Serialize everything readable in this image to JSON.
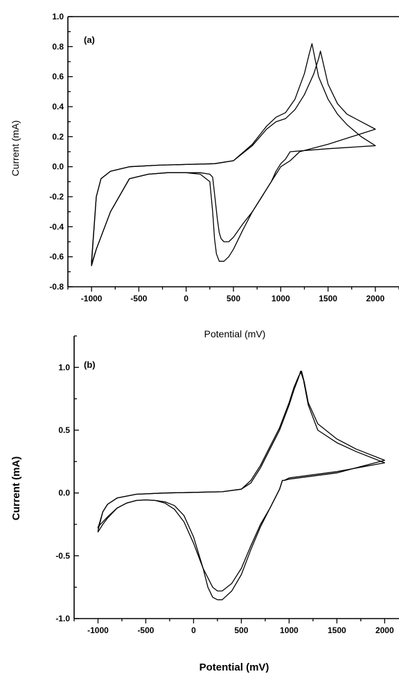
{
  "chart_data": [
    {
      "type": "line",
      "panel_label": "(a)",
      "xlabel": "Potential (mV)",
      "ylabel": "Current (mA)",
      "xlim": [
        -1250,
        2250
      ],
      "ylim": [
        -0.8,
        1.0
      ],
      "xticks": [
        -1000,
        -500,
        0,
        500,
        1000,
        1500,
        2000
      ],
      "yticks": [
        -0.8,
        -0.6,
        -0.4,
        -0.2,
        0.0,
        0.2,
        0.4,
        0.6,
        0.8,
        1.0
      ],
      "tick_labels_x": [
        "-1000",
        "-500",
        "0",
        "500",
        "1000",
        "1500",
        "2000"
      ],
      "tick_labels_y": [
        "-0.8",
        "-0.6",
        "-0.4",
        "-0.2",
        "0.0",
        "0.2",
        "0.4",
        "0.6",
        "0.8",
        "1.0"
      ],
      "series": [
        {
          "x": [
            -1000,
            -950,
            -900,
            -800,
            -600,
            -300,
            0,
            300,
            500,
            700,
            850,
            950,
            1050,
            1150,
            1250,
            1300,
            1330,
            1400,
            1500,
            1600,
            1700,
            1850,
            2000,
            1500,
            1100,
            1050,
            1000,
            950,
            900,
            800,
            700,
            600,
            500,
            450,
            400,
            350,
            320,
            300,
            280,
            250,
            150,
            0,
            -200,
            -400,
            -600,
            -800,
            -950,
            -1000
          ],
          "y": [
            -0.63,
            -0.2,
            -0.08,
            -0.03,
            0.0,
            0.01,
            0.015,
            0.02,
            0.04,
            0.15,
            0.27,
            0.33,
            0.36,
            0.45,
            0.62,
            0.75,
            0.82,
            0.6,
            0.45,
            0.35,
            0.28,
            0.2,
            0.14,
            0.12,
            0.1,
            0.05,
            0.02,
            -0.03,
            -0.1,
            -0.2,
            -0.3,
            -0.42,
            -0.55,
            -0.6,
            -0.63,
            -0.63,
            -0.58,
            -0.48,
            -0.3,
            -0.1,
            -0.05,
            -0.04,
            -0.04,
            -0.05,
            -0.08,
            -0.3,
            -0.55,
            -0.65
          ]
        },
        {
          "x": [
            -1000,
            -950,
            -900,
            -800,
            -600,
            -300,
            0,
            300,
            500,
            700,
            850,
            950,
            1050,
            1150,
            1250,
            1350,
            1400,
            1420,
            1500,
            1600,
            1700,
            1850,
            2000,
            1500,
            1200,
            1100,
            1000,
            950,
            900,
            800,
            700,
            600,
            500,
            450,
            400,
            370,
            350,
            330,
            300,
            280,
            250,
            150,
            0,
            -200,
            -400,
            -600,
            -800,
            -950,
            -1000
          ],
          "y": [
            -0.65,
            -0.2,
            -0.08,
            -0.03,
            0.0,
            0.01,
            0.015,
            0.02,
            0.04,
            0.14,
            0.25,
            0.3,
            0.32,
            0.38,
            0.48,
            0.62,
            0.72,
            0.77,
            0.55,
            0.42,
            0.35,
            0.3,
            0.25,
            0.15,
            0.1,
            0.04,
            0.0,
            -0.05,
            -0.1,
            -0.2,
            -0.3,
            -0.38,
            -0.47,
            -0.5,
            -0.5,
            -0.48,
            -0.44,
            -0.35,
            -0.18,
            -0.07,
            -0.05,
            -0.04,
            -0.04,
            -0.04,
            -0.05,
            -0.08,
            -0.3,
            -0.55,
            -0.66
          ]
        }
      ]
    },
    {
      "type": "line",
      "panel_label": "(b)",
      "xlabel": "Potential (mV)",
      "ylabel": "Current (mA)",
      "xlim": [
        -1250,
        2150
      ],
      "ylim": [
        -1.0,
        1.25
      ],
      "xticks": [
        -1000,
        -500,
        0,
        500,
        1000,
        1500,
        2000
      ],
      "yticks": [
        -1.0,
        -0.5,
        0.0,
        0.5,
        1.0
      ],
      "tick_labels_x": [
        "-1000",
        "-500",
        "0",
        "500",
        "1000",
        "1500",
        "2000"
      ],
      "tick_labels_y": [
        "-1.0",
        "-0.5",
        "0.0",
        "0.5",
        "1.0"
      ],
      "series": [
        {
          "x": [
            -1000,
            -950,
            -900,
            -800,
            -600,
            -300,
            0,
            300,
            500,
            600,
            700,
            800,
            900,
            1000,
            1050,
            1100,
            1120,
            1150,
            1200,
            1300,
            1500,
            1700,
            2000,
            1500,
            1000,
            950,
            930,
            900,
            800,
            700,
            600,
            500,
            400,
            300,
            250,
            200,
            100,
            0,
            -100,
            -200,
            -300,
            -400,
            -500,
            -600,
            -700,
            -800,
            -900,
            -950,
            -1000
          ],
          "y": [
            -0.28,
            -0.15,
            -0.09,
            -0.04,
            -0.01,
            0.0,
            0.005,
            0.01,
            0.03,
            0.08,
            0.2,
            0.35,
            0.5,
            0.7,
            0.82,
            0.92,
            0.97,
            0.9,
            0.7,
            0.5,
            0.4,
            0.33,
            0.24,
            0.17,
            0.12,
            0.1,
            0.1,
            0.03,
            -0.12,
            -0.25,
            -0.42,
            -0.6,
            -0.72,
            -0.78,
            -0.78,
            -0.75,
            -0.6,
            -0.4,
            -0.23,
            -0.13,
            -0.08,
            -0.06,
            -0.055,
            -0.06,
            -0.08,
            -0.12,
            -0.19,
            -0.23,
            -0.27
          ]
        },
        {
          "x": [
            -1000,
            -950,
            -900,
            -800,
            -600,
            -300,
            0,
            300,
            500,
            600,
            700,
            800,
            900,
            1000,
            1050,
            1100,
            1130,
            1160,
            1200,
            1300,
            1500,
            1700,
            2000,
            1500,
            1000,
            950,
            930,
            900,
            800,
            700,
            600,
            500,
            400,
            300,
            250,
            200,
            150,
            100,
            0,
            -100,
            -200,
            -300,
            -400,
            -500,
            -600,
            -700,
            -800,
            -900,
            -950,
            -1000
          ],
          "y": [
            -0.3,
            -0.15,
            -0.09,
            -0.04,
            -0.01,
            0.0,
            0.005,
            0.01,
            0.03,
            0.1,
            0.22,
            0.37,
            0.52,
            0.72,
            0.84,
            0.93,
            0.97,
            0.88,
            0.72,
            0.55,
            0.43,
            0.35,
            0.26,
            0.16,
            0.11,
            0.1,
            0.1,
            0.03,
            -0.12,
            -0.27,
            -0.45,
            -0.65,
            -0.78,
            -0.85,
            -0.85,
            -0.83,
            -0.75,
            -0.6,
            -0.35,
            -0.18,
            -0.1,
            -0.07,
            -0.06,
            -0.055,
            -0.06,
            -0.08,
            -0.12,
            -0.2,
            -0.25,
            -0.31
          ]
        }
      ]
    }
  ]
}
